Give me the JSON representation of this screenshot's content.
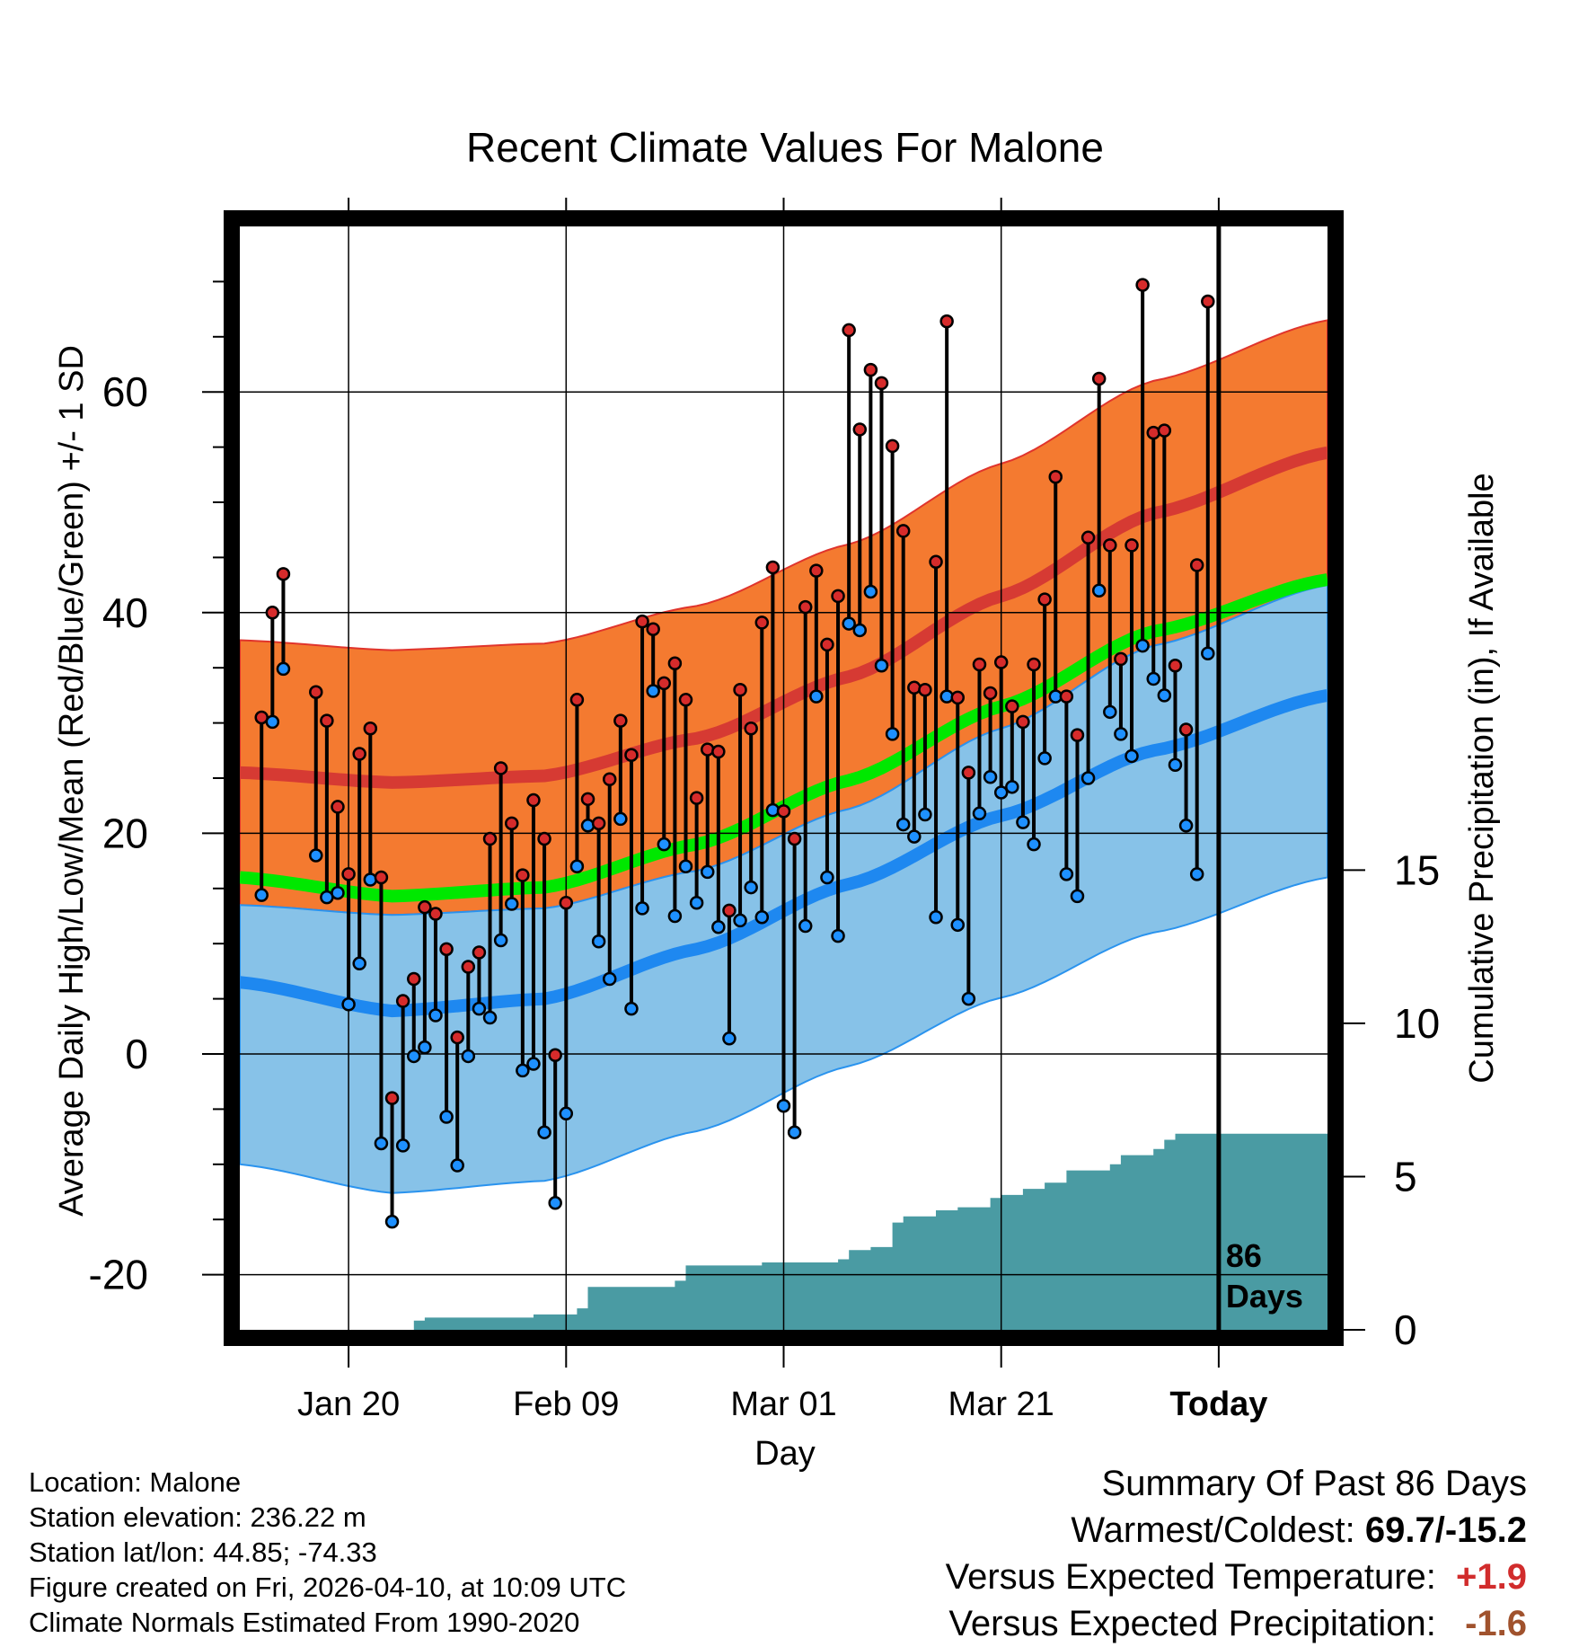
{
  "chart_data": {
    "type": "line",
    "title": "Recent Climate Values For Malone",
    "xlabel": "Day",
    "ylabel": "Average Daily High/Low/Mean (Red/Blue/Green) +/- 1 SD",
    "y2label": "Cumulative Precipitation (in), If Available",
    "x_tick_labels": [
      "Jan 20",
      "Feb 09",
      "Mar 01",
      "Mar 21",
      "Today"
    ],
    "x_tick_days": [
      10,
      30,
      50,
      70,
      90
    ],
    "xlim": [
      0,
      100
    ],
    "ylim": [
      -25,
      75
    ],
    "y_ticks": [
      -20,
      0,
      20,
      40,
      60
    ],
    "y2_ticks": [
      0,
      5,
      10,
      15
    ],
    "y2lim": [
      0,
      36
    ],
    "today_label": "86 Days",
    "normal_high": {
      "mean": [
        25.5,
        24.6,
        25.2,
        28.6,
        34.2,
        41.5,
        49.0,
        54.5
      ],
      "sd": 12.0
    },
    "normal_low": {
      "mean": [
        6.5,
        3.9,
        5.0,
        9.5,
        15.4,
        21.6,
        27.5,
        32.5
      ],
      "sd": 16.5
    },
    "normal_mean": {
      "mean": [
        16.0,
        14.3,
        15.1,
        19.0,
        24.8,
        31.5,
        38.3,
        43.0
      ]
    },
    "normal_x": [
      0,
      14,
      28,
      42,
      56,
      70,
      84,
      100
    ],
    "daily_high": [
      30.5,
      40.0,
      43.5,
      null,
      null,
      32.8,
      30.2,
      22.4,
      16.3,
      27.2,
      29.5,
      16.0,
      -4.0,
      4.8,
      6.8,
      13.3,
      12.7,
      9.5,
      1.5,
      7.9,
      9.2,
      19.5,
      25.9,
      20.9,
      16.2,
      23.0,
      19.5,
      -0.1,
      13.7,
      32.1,
      23.1,
      20.9,
      24.9,
      30.2,
      27.1,
      39.2,
      38.5,
      33.6,
      35.4,
      32.1,
      23.2,
      27.6,
      27.4,
      13.0,
      33.0,
      29.5,
      39.1,
      44.1,
      22.0,
      19.5,
      40.5,
      43.8,
      37.1,
      41.5,
      65.6,
      56.6,
      62.0,
      60.8,
      55.1,
      47.4,
      33.2,
      33.0,
      44.6,
      66.4,
      32.3,
      25.5,
      35.3,
      32.7,
      35.5,
      31.5,
      30.1,
      35.3,
      41.2,
      52.3,
      32.4,
      28.9,
      46.8,
      61.2,
      46.1,
      35.8,
      46.1,
      69.7,
      56.3,
      56.5,
      35.2,
      29.4,
      44.3,
      68.2
    ],
    "daily_low": [
      14.4,
      30.1,
      34.9,
      null,
      null,
      18.0,
      14.2,
      14.6,
      4.5,
      8.2,
      15.8,
      -8.1,
      -15.2,
      -8.3,
      -0.2,
      0.6,
      3.5,
      -5.7,
      -10.1,
      -0.2,
      4.1,
      3.3,
      10.3,
      13.6,
      -1.5,
      -0.9,
      -7.1,
      -13.5,
      -5.4,
      17.0,
      20.7,
      10.2,
      6.8,
      21.3,
      4.1,
      13.2,
      32.9,
      19.0,
      12.5,
      17.0,
      13.7,
      16.5,
      11.5,
      1.4,
      12.1,
      15.1,
      12.4,
      22.1,
      -4.7,
      -7.1,
      11.6,
      32.4,
      16.0,
      10.7,
      39.0,
      38.4,
      41.9,
      35.2,
      29.0,
      20.8,
      19.7,
      21.7,
      12.4,
      32.4,
      11.7,
      5.0,
      21.8,
      25.1,
      23.7,
      24.2,
      21.0,
      19.0,
      26.8,
      32.4,
      16.3,
      14.3,
      25.0,
      42.0,
      31.0,
      29.0,
      27.0,
      37.0,
      34.0,
      32.5,
      26.2,
      20.7,
      16.3,
      36.3
    ],
    "cumulative_precip_x": [
      0,
      15,
      16,
      17,
      27,
      31,
      32,
      40,
      41,
      48,
      55,
      56,
      58,
      60,
      61,
      64,
      66,
      69,
      70,
      72,
      74,
      76,
      80,
      81,
      84,
      85,
      86,
      100
    ],
    "cumulative_precip": [
      0,
      0,
      0.3,
      0.4,
      0.5,
      0.7,
      1.4,
      1.6,
      2.1,
      2.2,
      2.3,
      2.6,
      2.7,
      3.5,
      3.7,
      3.9,
      4.0,
      4.3,
      4.4,
      4.6,
      4.8,
      5.2,
      5.4,
      5.7,
      5.9,
      6.2,
      6.4,
      6.4
    ],
    "colors": {
      "high_band": "#f47a30",
      "high_line": "#d63a33",
      "low_band": "#87c2e8",
      "low_line": "#1e88f0",
      "mean_line": "#00e800",
      "overlap": "#9c1016",
      "precip": "#4a9ba3",
      "high_dot": "#d62b2b",
      "low_dot": "#1e90ff"
    }
  },
  "info": {
    "location": "Location: Malone",
    "elevation": "Station elevation: 236.22 m",
    "latlon": "Station lat/lon: 44.85; -74.33",
    "created": "Figure created on Fri, 2026-04-10, at 10:09 UTC",
    "normals": "Climate Normals Estimated From 1990-2020"
  },
  "summary": {
    "title": "Summary Of Past 86 Days",
    "warmest_label": "Warmest/Coldest:",
    "warmest_value": "69.7/-15.2",
    "temp_label": "Versus Expected Temperature:",
    "temp_value": "+1.9",
    "precip_label": "Versus Expected Precipitation:",
    "precip_value": "-1.6"
  }
}
